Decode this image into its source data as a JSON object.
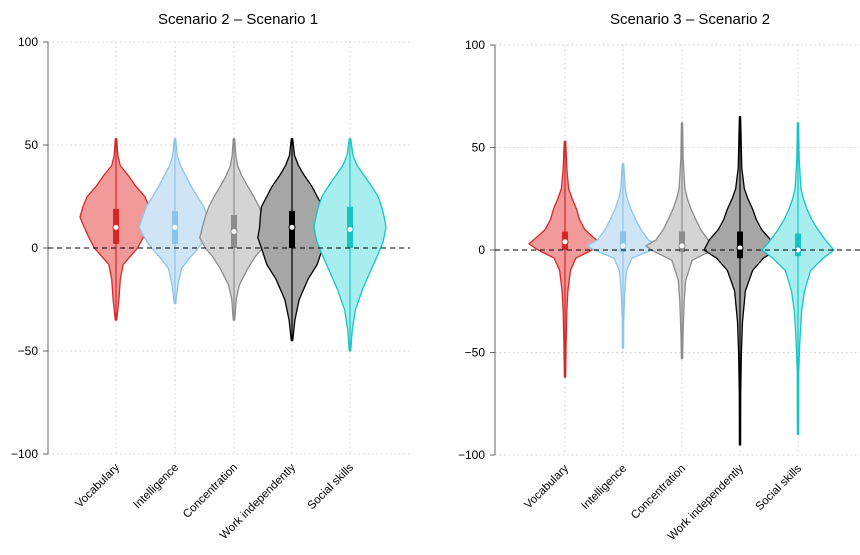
{
  "chart_data": [
    {
      "type": "violin",
      "title": "Scenario 2 – Scenario 1",
      "xlabel": "",
      "ylabel": "",
      "ylim": [
        -100,
        100
      ],
      "yticks": [
        100,
        50,
        0,
        -50,
        -100
      ],
      "grid": true,
      "reference_line_y": 0,
      "categories": [
        "Vocabulary",
        "Intelligence",
        "Concentration",
        "Work independently",
        "Social skills"
      ],
      "series": [
        {
          "category": "Vocabulary",
          "color": "#d62728",
          "fill": "#f29a9a",
          "min": -35,
          "max": 53,
          "q1": 2,
          "median": 10,
          "q3": 19,
          "density": [
            [
              -35,
              0.02
            ],
            [
              -25,
              0.08
            ],
            [
              -15,
              0.12
            ],
            [
              -8,
              0.2
            ],
            [
              -3,
              0.45
            ],
            [
              0,
              0.6
            ],
            [
              5,
              0.75
            ],
            [
              10,
              0.88
            ],
            [
              15,
              1.0
            ],
            [
              20,
              0.92
            ],
            [
              25,
              0.8
            ],
            [
              30,
              0.55
            ],
            [
              35,
              0.35
            ],
            [
              40,
              0.12
            ],
            [
              45,
              0.05
            ],
            [
              53,
              0.02
            ]
          ]
        },
        {
          "category": "Intelligence",
          "color": "#8ec4ea",
          "fill": "#cfe5f6",
          "min": -27,
          "max": 53,
          "q1": 2,
          "median": 10,
          "q3": 18,
          "density": [
            [
              -27,
              0.02
            ],
            [
              -18,
              0.08
            ],
            [
              -10,
              0.18
            ],
            [
              -5,
              0.4
            ],
            [
              0,
              0.65
            ],
            [
              5,
              0.85
            ],
            [
              10,
              1.0
            ],
            [
              15,
              0.9
            ],
            [
              20,
              0.8
            ],
            [
              25,
              0.62
            ],
            [
              30,
              0.45
            ],
            [
              35,
              0.3
            ],
            [
              40,
              0.15
            ],
            [
              45,
              0.06
            ],
            [
              53,
              0.02
            ]
          ]
        },
        {
          "category": "Concentration",
          "color": "#8c8c8c",
          "fill": "#d4d4d4",
          "min": -35,
          "max": 53,
          "q1": 0,
          "median": 8,
          "q3": 16,
          "density": [
            [
              -35,
              0.02
            ],
            [
              -25,
              0.06
            ],
            [
              -18,
              0.15
            ],
            [
              -10,
              0.38
            ],
            [
              -4,
              0.6
            ],
            [
              0,
              0.8
            ],
            [
              5,
              0.95
            ],
            [
              10,
              0.88
            ],
            [
              15,
              0.8
            ],
            [
              20,
              0.7
            ],
            [
              25,
              0.55
            ],
            [
              30,
              0.38
            ],
            [
              35,
              0.22
            ],
            [
              40,
              0.1
            ],
            [
              45,
              0.05
            ],
            [
              53,
              0.02
            ]
          ]
        },
        {
          "category": "Work independently",
          "color": "#000000",
          "fill": "#a6a6a6",
          "min": -45,
          "max": 53,
          "q1": 0,
          "median": 10,
          "q3": 18,
          "density": [
            [
              -45,
              0.02
            ],
            [
              -35,
              0.08
            ],
            [
              -25,
              0.2
            ],
            [
              -15,
              0.45
            ],
            [
              -8,
              0.7
            ],
            [
              0,
              0.85
            ],
            [
              5,
              0.95
            ],
            [
              10,
              0.9
            ],
            [
              15,
              0.88
            ],
            [
              20,
              0.85
            ],
            [
              25,
              0.7
            ],
            [
              30,
              0.55
            ],
            [
              35,
              0.35
            ],
            [
              40,
              0.18
            ],
            [
              45,
              0.07
            ],
            [
              53,
              0.02
            ]
          ]
        },
        {
          "category": "Social skills",
          "color": "#17c4c4",
          "fill": "#a9eeee",
          "min": -50,
          "max": 53,
          "q1": 0,
          "median": 9,
          "q3": 20,
          "density": [
            [
              -50,
              0.02
            ],
            [
              -40,
              0.06
            ],
            [
              -30,
              0.15
            ],
            [
              -20,
              0.35
            ],
            [
              -10,
              0.6
            ],
            [
              -3,
              0.78
            ],
            [
              3,
              0.92
            ],
            [
              10,
              1.0
            ],
            [
              15,
              0.95
            ],
            [
              20,
              0.88
            ],
            [
              25,
              0.78
            ],
            [
              30,
              0.6
            ],
            [
              35,
              0.4
            ],
            [
              40,
              0.2
            ],
            [
              45,
              0.08
            ],
            [
              53,
              0.02
            ]
          ]
        }
      ]
    },
    {
      "type": "violin",
      "title": "Scenario 3 – Scenario 2",
      "xlabel": "",
      "ylabel": "",
      "ylim": [
        -100,
        100
      ],
      "yticks": [
        100,
        50,
        0,
        -50,
        -100
      ],
      "grid": true,
      "reference_line_y": 0,
      "categories": [
        "Vocabulary",
        "Intelligence",
        "Concentration",
        "Work independently",
        "Social skills"
      ],
      "series": [
        {
          "category": "Vocabulary",
          "color": "#d62728",
          "fill": "#f29a9a",
          "min": -62,
          "max": 53,
          "q1": 0,
          "median": 4,
          "q3": 9,
          "density": [
            [
              -62,
              0.01
            ],
            [
              -45,
              0.03
            ],
            [
              -30,
              0.05
            ],
            [
              -20,
              0.08
            ],
            [
              -10,
              0.15
            ],
            [
              -4,
              0.3
            ],
            [
              0,
              0.75
            ],
            [
              3,
              1.0
            ],
            [
              6,
              0.8
            ],
            [
              10,
              0.55
            ],
            [
              15,
              0.4
            ],
            [
              20,
              0.32
            ],
            [
              25,
              0.2
            ],
            [
              30,
              0.1
            ],
            [
              40,
              0.05
            ],
            [
              53,
              0.02
            ]
          ]
        },
        {
          "category": "Intelligence",
          "color": "#8ec4ea",
          "fill": "#cfe5f6",
          "min": -48,
          "max": 42,
          "q1": -1,
          "median": 2,
          "q3": 9,
          "density": [
            [
              -48,
              0.01
            ],
            [
              -35,
              0.02
            ],
            [
              -20,
              0.05
            ],
            [
              -10,
              0.1
            ],
            [
              -4,
              0.25
            ],
            [
              0,
              0.8
            ],
            [
              2,
              1.0
            ],
            [
              5,
              0.7
            ],
            [
              10,
              0.5
            ],
            [
              15,
              0.35
            ],
            [
              20,
              0.22
            ],
            [
              25,
              0.12
            ],
            [
              30,
              0.06
            ],
            [
              42,
              0.02
            ]
          ]
        },
        {
          "category": "Concentration",
          "color": "#8c8c8c",
          "fill": "#d4d4d4",
          "min": -53,
          "max": 62,
          "q1": -1,
          "median": 2,
          "q3": 9,
          "density": [
            [
              -53,
              0.01
            ],
            [
              -40,
              0.03
            ],
            [
              -25,
              0.06
            ],
            [
              -15,
              0.1
            ],
            [
              -5,
              0.28
            ],
            [
              0,
              0.85
            ],
            [
              2,
              1.0
            ],
            [
              5,
              0.72
            ],
            [
              10,
              0.52
            ],
            [
              15,
              0.38
            ],
            [
              20,
              0.25
            ],
            [
              25,
              0.15
            ],
            [
              30,
              0.08
            ],
            [
              45,
              0.03
            ],
            [
              62,
              0.01
            ]
          ]
        },
        {
          "category": "Work independently",
          "color": "#000000",
          "fill": "#a6a6a6",
          "min": -95,
          "max": 65,
          "q1": -4,
          "median": 1,
          "q3": 9,
          "density": [
            [
              -95,
              0.01
            ],
            [
              -70,
              0.02
            ],
            [
              -50,
              0.04
            ],
            [
              -35,
              0.07
            ],
            [
              -20,
              0.15
            ],
            [
              -10,
              0.35
            ],
            [
              -4,
              0.65
            ],
            [
              0,
              1.0
            ],
            [
              5,
              0.85
            ],
            [
              10,
              0.6
            ],
            [
              15,
              0.45
            ],
            [
              20,
              0.35
            ],
            [
              25,
              0.22
            ],
            [
              30,
              0.12
            ],
            [
              40,
              0.05
            ],
            [
              65,
              0.01
            ]
          ]
        },
        {
          "category": "Social skills",
          "color": "#17c4c4",
          "fill": "#a9eeee",
          "min": -90,
          "max": 62,
          "q1": -3,
          "median": 0,
          "q3": 8,
          "density": [
            [
              -90,
              0.01
            ],
            [
              -60,
              0.02
            ],
            [
              -45,
              0.05
            ],
            [
              -30,
              0.1
            ],
            [
              -20,
              0.18
            ],
            [
              -10,
              0.35
            ],
            [
              -4,
              0.7
            ],
            [
              0,
              1.0
            ],
            [
              4,
              0.8
            ],
            [
              10,
              0.55
            ],
            [
              15,
              0.38
            ],
            [
              20,
              0.25
            ],
            [
              25,
              0.15
            ],
            [
              30,
              0.08
            ],
            [
              45,
              0.03
            ],
            [
              62,
              0.01
            ]
          ]
        }
      ]
    }
  ]
}
